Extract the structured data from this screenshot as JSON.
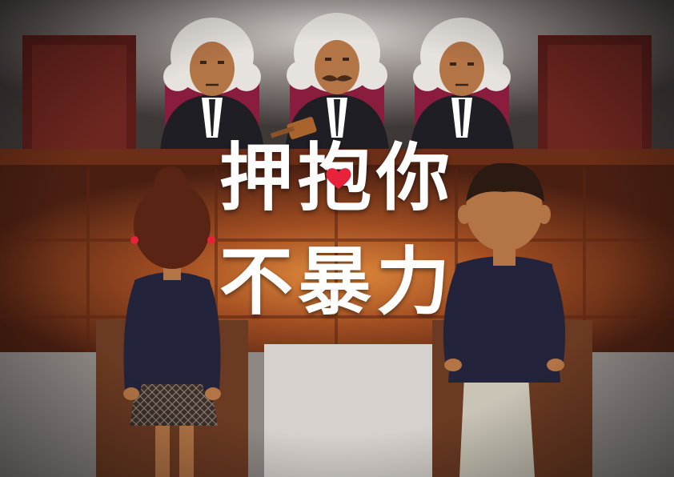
{
  "headline": {
    "line1": "押抱你",
    "line2": "不暴力"
  },
  "colors": {
    "wall": "#6b6360",
    "bench_wood": "#7a3a1f",
    "bench_highlight": "#c8732f",
    "judge_robe": "#1f1e24",
    "judge_wig": "#e6e2dd",
    "chair_red": "#8a1d3d",
    "heart": "#e8223a",
    "jacket_navy": "#23233b",
    "title_text": "#ffffff"
  },
  "icons": {
    "heart": "heart-icon",
    "gavel": "gavel-icon"
  }
}
